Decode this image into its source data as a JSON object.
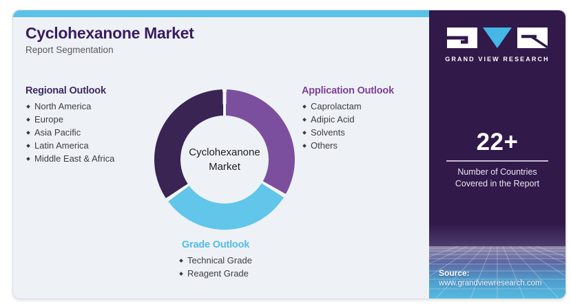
{
  "header": {
    "title": "Cyclohexanone Market",
    "subtitle": "Report Segmentation"
  },
  "segments": {
    "regional": {
      "title": "Regional Outlook",
      "items": [
        "North America",
        "Europe",
        "Asia Pacific",
        "Latin America",
        "Middle East & Africa"
      ]
    },
    "application": {
      "title": "Application Outlook",
      "items": [
        "Caprolactam",
        "Adipic Acid",
        "Solvents",
        "Others"
      ]
    },
    "grade": {
      "title": "Grade Outlook",
      "items": [
        "Technical Grade",
        "Reagent Grade"
      ]
    }
  },
  "chart_data": {
    "type": "pie",
    "title": "Cyclohexanone Market",
    "center_line1": "Cyclohexanone",
    "center_line2": "Market",
    "gap_color": "#f4f7fa",
    "gap_deg": 1.6,
    "segments": [
      {
        "label": "Application Outlook",
        "color": "#7b4f9e",
        "start_deg": 0,
        "end_deg": 121
      },
      {
        "label": "Grade Outlook",
        "color": "#62c5ea",
        "start_deg": 121,
        "end_deg": 235
      },
      {
        "label": "Regional Outlook",
        "color": "#3a2453",
        "start_deg": 235,
        "end_deg": 360
      }
    ]
  },
  "sidebar": {
    "brand": "GRAND VIEW RESEARCH",
    "stat_value": "22+",
    "stat_caption_line1": "Number of Countries",
    "stat_caption_line2": "Covered in the Report",
    "source_label": "Source:",
    "source_url": "www.grandviewresearch.com"
  },
  "colors": {
    "accent_cyan": "#5ac1e8",
    "card_bg": "#eef2f7",
    "sidebar_bg": "#31194a",
    "title_purple": "#3a1c5f",
    "regional_header": "#3e2960",
    "application_header": "#7d3f98",
    "grade_header": "#53bbe8",
    "donut_dark_purple": "#3a2453",
    "donut_purple": "#7b4f9e",
    "donut_blue": "#62c5ea"
  }
}
